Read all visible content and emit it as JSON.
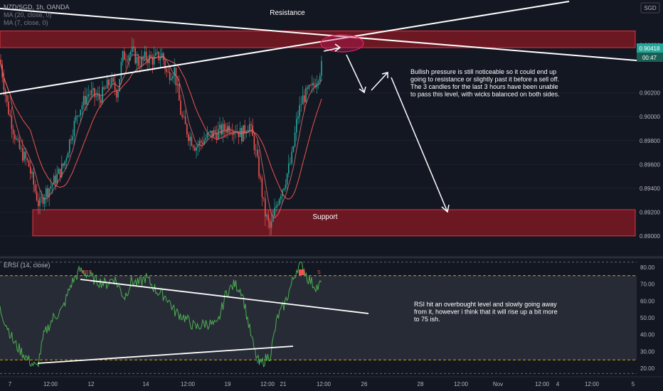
{
  "header": {
    "symbol_line": "NZD/SGD, 1h, OANDA",
    "ma20_line": "MA (20, close, 0)",
    "ma7_line": "MA (7, close, 0)"
  },
  "currency_badge": "SGD",
  "colors": {
    "background": "#131722",
    "up_candle": "#26a69a",
    "down_candle": "#ef5350",
    "zone_fill": "#8b1a24",
    "zone_border": "#e2353f",
    "rsi_line": "#4caf50",
    "ma_line": "#ef5350",
    "price_badge": "#26a69a",
    "timer_badge": "#1b5e54"
  },
  "annotations": {
    "resistance_label": "Resistance",
    "support_label": "Support",
    "price_note_lines": [
      "Bullish pressure is still noticeable so it could end up",
      "going to resistance or slightly past it before a sell off.",
      "The 3 candles for the last 3 hours have been unable",
      "to pass this level, with wicks balanced on both sides."
    ],
    "rsi_note_lines": [
      "RSI hit an overbought level and slowly going away",
      "from it, however i think that it will rise up a bit more",
      "to 75 ish."
    ]
  },
  "rsi_panel": {
    "title": "ERSI (14, close)",
    "overbought": 75,
    "oversold": 25,
    "markers": [
      "BBS",
      "S",
      "B"
    ]
  },
  "price_badges": {
    "last_price": "0.90418",
    "countdown": "00:47"
  },
  "chart_data": [
    {
      "type": "candlestick",
      "title": "NZD/SGD, 1h, OANDA",
      "ylim": [
        0.8882,
        0.9098
      ],
      "y_ticks": [
        "0.90600",
        "0.90200",
        "0.90000",
        "0.89800",
        "0.89600",
        "0.89400",
        "0.89200",
        "0.89000"
      ],
      "x_ticks": [
        "7",
        "12:00",
        "12",
        "14",
        "12:00",
        "19",
        "12:00",
        "21",
        "12:00",
        "26",
        "28",
        "12:00",
        "Nov",
        "12:00",
        "4",
        "12:00",
        "5"
      ],
      "series": [
        {
          "name": "MA (20, close, 0)"
        },
        {
          "name": "MA (7, close, 0)"
        }
      ],
      "path_points": [
        [
          0,
          0.9048
        ],
        [
          10,
          0.901
        ],
        [
          25,
          0.8975
        ],
        [
          40,
          0.896
        ],
        [
          55,
          0.8925
        ],
        [
          62,
          0.8935
        ],
        [
          75,
          0.8945
        ],
        [
          90,
          0.896
        ],
        [
          100,
          0.8985
        ],
        [
          110,
          0.9005
        ],
        [
          125,
          0.902
        ],
        [
          140,
          0.9015
        ],
        [
          155,
          0.903
        ],
        [
          165,
          0.902
        ],
        [
          172,
          0.905
        ],
        [
          185,
          0.9055
        ],
        [
          195,
          0.9045
        ],
        [
          205,
          0.905
        ],
        [
          215,
          0.9048
        ],
        [
          228,
          0.9052
        ],
        [
          235,
          0.9035
        ],
        [
          245,
          0.904
        ],
        [
          255,
          0.9
        ],
        [
          265,
          0.8985
        ],
        [
          275,
          0.8975
        ],
        [
          285,
          0.898
        ],
        [
          295,
          0.8985
        ],
        [
          310,
          0.8988
        ],
        [
          322,
          0.8992
        ],
        [
          330,
          0.899
        ],
        [
          340,
          0.8985
        ],
        [
          350,
          0.8995
        ],
        [
          358,
          0.8975
        ],
        [
          365,
          0.895
        ],
        [
          372,
          0.892
        ],
        [
          380,
          0.8905
        ],
        [
          390,
          0.893
        ],
        [
          400,
          0.8945
        ],
        [
          410,
          0.8965
        ],
        [
          418,
          0.9
        ],
        [
          425,
          0.9015
        ],
        [
          432,
          0.902
        ],
        [
          440,
          0.9025
        ],
        [
          447,
          0.9035
        ],
        [
          452,
          0.9042
        ]
      ],
      "resistance_zone": [
        0.9058,
        0.9072
      ],
      "support_zone": [
        0.89,
        0.8922
      ]
    },
    {
      "type": "line",
      "title": "ERSI (14, close)",
      "ylim": [
        15,
        85
      ],
      "y_ticks": [
        "80.00",
        "70.00",
        "60.00",
        "50.00",
        "40.00",
        "30.00",
        "20.00"
      ],
      "series": [
        {
          "name": "ERSI (14, close)",
          "points": [
            [
              0,
              55
            ],
            [
              20,
              35
            ],
            [
              40,
              25
            ],
            [
              52,
              20
            ],
            [
              62,
              40
            ],
            [
              75,
              50
            ],
            [
              88,
              55
            ],
            [
              100,
              70
            ],
            [
              112,
              78
            ],
            [
              122,
              76
            ],
            [
              135,
              72
            ],
            [
              150,
              70
            ],
            [
              160,
              74
            ],
            [
              175,
              62
            ],
            [
              185,
              72
            ],
            [
              195,
              70
            ],
            [
              205,
              74
            ],
            [
              220,
              66
            ],
            [
              235,
              62
            ],
            [
              245,
              54
            ],
            [
              260,
              50
            ],
            [
              275,
              44
            ],
            [
              290,
              47
            ],
            [
              305,
              45
            ],
            [
              318,
              65
            ],
            [
              330,
              70
            ],
            [
              340,
              66
            ],
            [
              350,
              45
            ],
            [
              358,
              30
            ],
            [
              365,
              22
            ],
            [
              372,
              25
            ],
            [
              380,
              28
            ],
            [
              390,
              50
            ],
            [
              400,
              58
            ],
            [
              410,
              70
            ],
            [
              418,
              80
            ],
            [
              425,
              82
            ],
            [
              432,
              74
            ],
            [
              440,
              70
            ],
            [
              447,
              68
            ],
            [
              452,
              71
            ]
          ]
        }
      ]
    }
  ]
}
